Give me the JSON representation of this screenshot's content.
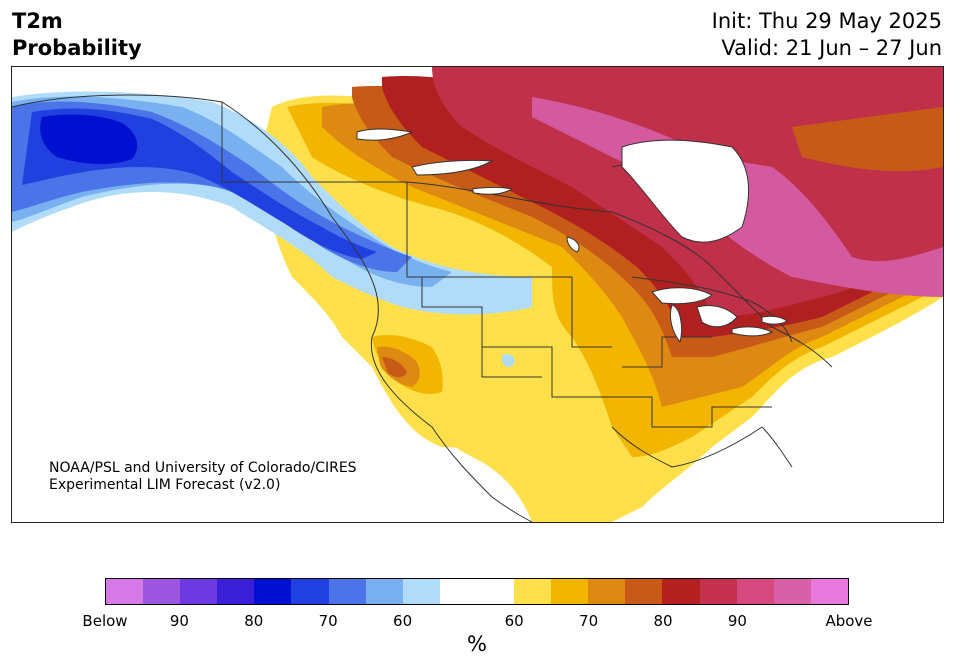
{
  "title": {
    "left_line1": "T2m",
    "left_line2": "Probability",
    "init": "Init: Thu 29 May 2025",
    "valid": "Valid: 21 Jun – 27 Jun"
  },
  "credit": {
    "line1": "NOAA/PSL and University of Colorado/CIRES",
    "line2": "Experimental LIM Forecast (v2.0)"
  },
  "colorbar": {
    "units": "%",
    "below_colors": [
      "#d678e8",
      "#9c56e0",
      "#6c3ae0",
      "#3a1ed8",
      "#0010d0",
      "#2040e0",
      "#4a74e8",
      "#78b0f0",
      "#b0dcfa"
    ],
    "neutral_color": "#ffffff",
    "above_colors": [
      "#ffe04a",
      "#f2b600",
      "#de8a12",
      "#c85a18",
      "#b42020",
      "#c43050",
      "#d64a80",
      "#d860a8",
      "#e878dc"
    ],
    "tick_labels": [
      "Below",
      "90",
      "80",
      "70",
      "60",
      "60",
      "70",
      "80",
      "90",
      "Above"
    ]
  },
  "map": {
    "region": "North America",
    "color_levels": {
      "strong_above": "#d45aa0",
      "above_80": "#c03048",
      "above_75": "#b02020",
      "above_70": "#c85a18",
      "above_65": "#de8a12",
      "above_60": "#f2b600",
      "above_55": "#ffe04a",
      "below_55": "#b0dcfa",
      "below_60": "#78b0f0",
      "below_65": "#4a74e8",
      "below_70": "#2040e0",
      "below_80": "#0010d0"
    }
  }
}
